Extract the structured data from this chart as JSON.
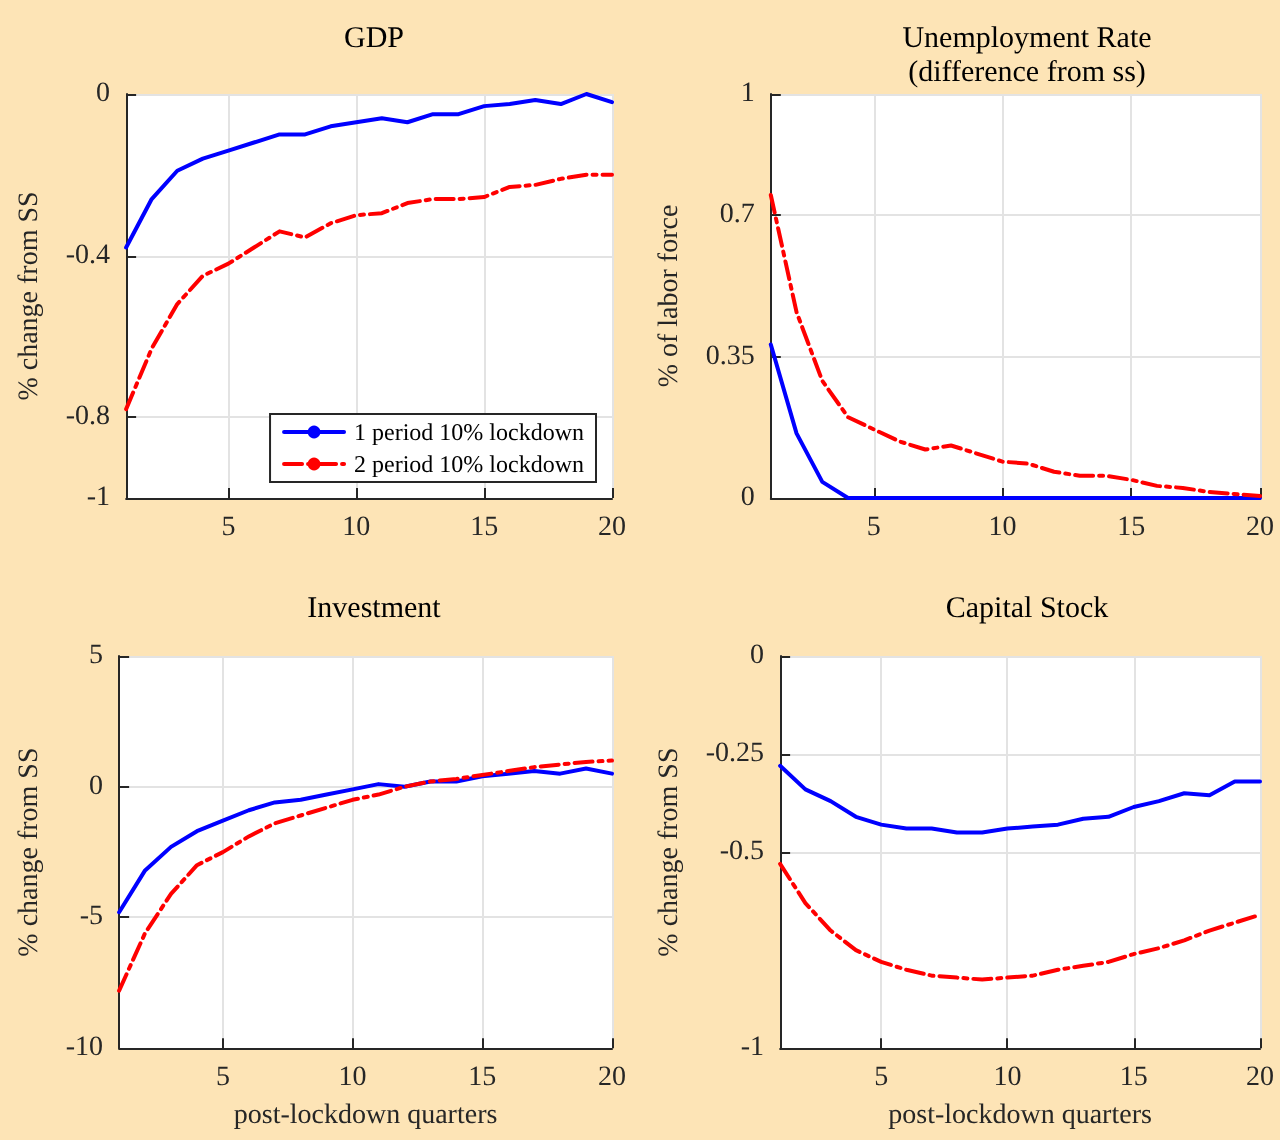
{
  "chart_data": [
    {
      "type": "line",
      "title": "GDP",
      "ylabel": "% change from SS",
      "x": [
        1,
        2,
        3,
        4,
        5,
        6,
        7,
        8,
        9,
        10,
        11,
        12,
        13,
        14,
        15,
        16,
        17,
        18,
        19,
        20
      ],
      "xlim": [
        1,
        20
      ],
      "xticks": [
        5,
        10,
        15,
        20
      ],
      "ylim": [
        -1,
        0
      ],
      "yticks": [
        -1,
        -0.8,
        -0.4,
        0
      ],
      "grid": true,
      "legend": "bottom right",
      "series": [
        {
          "name": "1 period 10% lockdown",
          "color": "#0000ff",
          "line_style": "solid",
          "values": [
            -0.38,
            -0.26,
            -0.19,
            -0.16,
            -0.14,
            -0.12,
            -0.1,
            -0.1,
            -0.08,
            -0.07,
            -0.06,
            -0.07,
            -0.05,
            -0.05,
            -0.03,
            -0.025,
            -0.015,
            -0.025,
            0,
            -0.02
          ]
        },
        {
          "name": "2 period 10% lockdown",
          "color": "#ff0000",
          "line_style": "dashed",
          "values": [
            -0.78,
            -0.63,
            -0.52,
            -0.45,
            -0.42,
            -0.38,
            -0.34,
            -0.355,
            -0.32,
            -0.3,
            -0.295,
            -0.27,
            -0.26,
            -0.26,
            -0.255,
            -0.23,
            -0.225,
            -0.21,
            -0.2,
            -0.2
          ]
        }
      ]
    },
    {
      "type": "line",
      "title": "Unemployment Rate\n(difference from ss)",
      "ylabel": "% of labor force",
      "x": [
        1,
        2,
        3,
        4,
        5,
        6,
        7,
        8,
        9,
        10,
        11,
        12,
        13,
        14,
        15,
        16,
        17,
        18,
        19,
        20
      ],
      "xlim": [
        1,
        20
      ],
      "xticks": [
        5,
        10,
        15,
        20
      ],
      "ylim": [
        0,
        1
      ],
      "yticks": [
        0,
        0.35,
        0.7,
        1
      ],
      "grid": true,
      "series": [
        {
          "color": "#0000ff",
          "line_style": "solid",
          "values": [
            0.38,
            0.16,
            0.04,
            0,
            0,
            0,
            0,
            0,
            0,
            0,
            0,
            0,
            0,
            0,
            0,
            0,
            0,
            0,
            0,
            0
          ]
        },
        {
          "color": "#ff0000",
          "line_style": "dashed",
          "values": [
            0.75,
            0.46,
            0.29,
            0.2,
            0.17,
            0.14,
            0.12,
            0.13,
            0.11,
            0.09,
            0.085,
            0.065,
            0.055,
            0.055,
            0.045,
            0.03,
            0.025,
            0.015,
            0.01,
            0.005
          ]
        }
      ]
    },
    {
      "type": "line",
      "title": "Investment",
      "xlabel": "post-lockdown quarters",
      "ylabel": "% change from SS",
      "x": [
        1,
        2,
        3,
        4,
        5,
        6,
        7,
        8,
        9,
        10,
        11,
        12,
        13,
        14,
        15,
        16,
        17,
        18,
        19,
        20
      ],
      "xlim": [
        1,
        20
      ],
      "xticks": [
        5,
        10,
        15,
        20
      ],
      "ylim": [
        -10,
        5
      ],
      "yticks": [
        -10,
        -5,
        0,
        5
      ],
      "grid": true,
      "series": [
        {
          "color": "#0000ff",
          "line_style": "solid",
          "values": [
            -4.8,
            -3.2,
            -2.3,
            -1.7,
            -1.3,
            -0.9,
            -0.6,
            -0.5,
            -0.3,
            -0.1,
            0.1,
            0,
            0.2,
            0.2,
            0.4,
            0.5,
            0.6,
            0.5,
            0.7,
            0.5
          ]
        },
        {
          "color": "#ff0000",
          "line_style": "dashed",
          "values": [
            -7.8,
            -5.6,
            -4.1,
            -3,
            -2.5,
            -1.9,
            -1.4,
            -1.1,
            -0.8,
            -0.5,
            -0.3,
            0,
            0.2,
            0.3,
            0.45,
            0.6,
            0.75,
            0.85,
            0.95,
            1
          ]
        }
      ]
    },
    {
      "type": "line",
      "title": "Capital Stock",
      "xlabel": "post-lockdown quarters",
      "ylabel": "% change from SS",
      "x": [
        1,
        2,
        3,
        4,
        5,
        6,
        7,
        8,
        9,
        10,
        11,
        12,
        13,
        14,
        15,
        16,
        17,
        18,
        19,
        20
      ],
      "xlim": [
        1,
        20
      ],
      "xticks": [
        5,
        10,
        15,
        20
      ],
      "ylim": [
        -1,
        0
      ],
      "yticks": [
        -1,
        -0.5,
        -0.25,
        0
      ],
      "grid": true,
      "series": [
        {
          "color": "#0000ff",
          "line_style": "solid",
          "values": [
            -0.28,
            -0.34,
            -0.37,
            -0.41,
            -0.43,
            -0.44,
            -0.44,
            -0.45,
            -0.45,
            -0.44,
            -0.435,
            -0.43,
            -0.415,
            -0.41,
            -0.385,
            -0.37,
            -0.35,
            -0.355,
            -0.32,
            -0.32
          ]
        },
        {
          "color": "#ff0000",
          "line_style": "dashed",
          "values": [
            -0.53,
            -0.63,
            -0.7,
            -0.75,
            -0.78,
            -0.8,
            -0.815,
            -0.82,
            -0.825,
            -0.82,
            -0.815,
            -0.8,
            -0.79,
            -0.78,
            -0.76,
            -0.745,
            -0.725,
            -0.7,
            -0.68,
            -0.66
          ]
        }
      ]
    }
  ]
}
